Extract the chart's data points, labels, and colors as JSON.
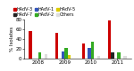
{
  "years": [
    "2008",
    "2009",
    "2010",
    "2011"
  ],
  "series": {
    "HAdV-3": [
      57,
      53,
      30,
      78
    ],
    "HAdV-7": [
      0,
      0,
      0,
      12
    ],
    "HAdV-1": [
      0,
      15,
      22,
      0
    ],
    "HAdV-2": [
      13,
      22,
      35,
      13
    ],
    "HAdV-5": [
      0,
      7,
      0,
      0
    ],
    "Others": [
      8,
      0,
      5,
      5
    ]
  },
  "colors": {
    "HAdV-3": "#cc0000",
    "HAdV-7": "#222222",
    "HAdV-1": "#3355bb",
    "HAdV-2": "#33aa22",
    "HAdV-5": "#ddcc00",
    "Others": "#dddddd"
  },
  "legend_order": [
    "HAdV-3",
    "HAdV-7",
    "HAdV-1",
    "HAdV-2",
    "HAdV-5",
    "Others"
  ],
  "ylabel": "% Isolates",
  "ylim": [
    0,
    80
  ],
  "yticks": [
    0,
    20,
    40,
    60,
    80
  ],
  "axis_fontsize": 4.0,
  "legend_fontsize": 3.5,
  "background_color": "#ffffff",
  "figsize": [
    1.5,
    0.8
  ],
  "dpi": 100
}
